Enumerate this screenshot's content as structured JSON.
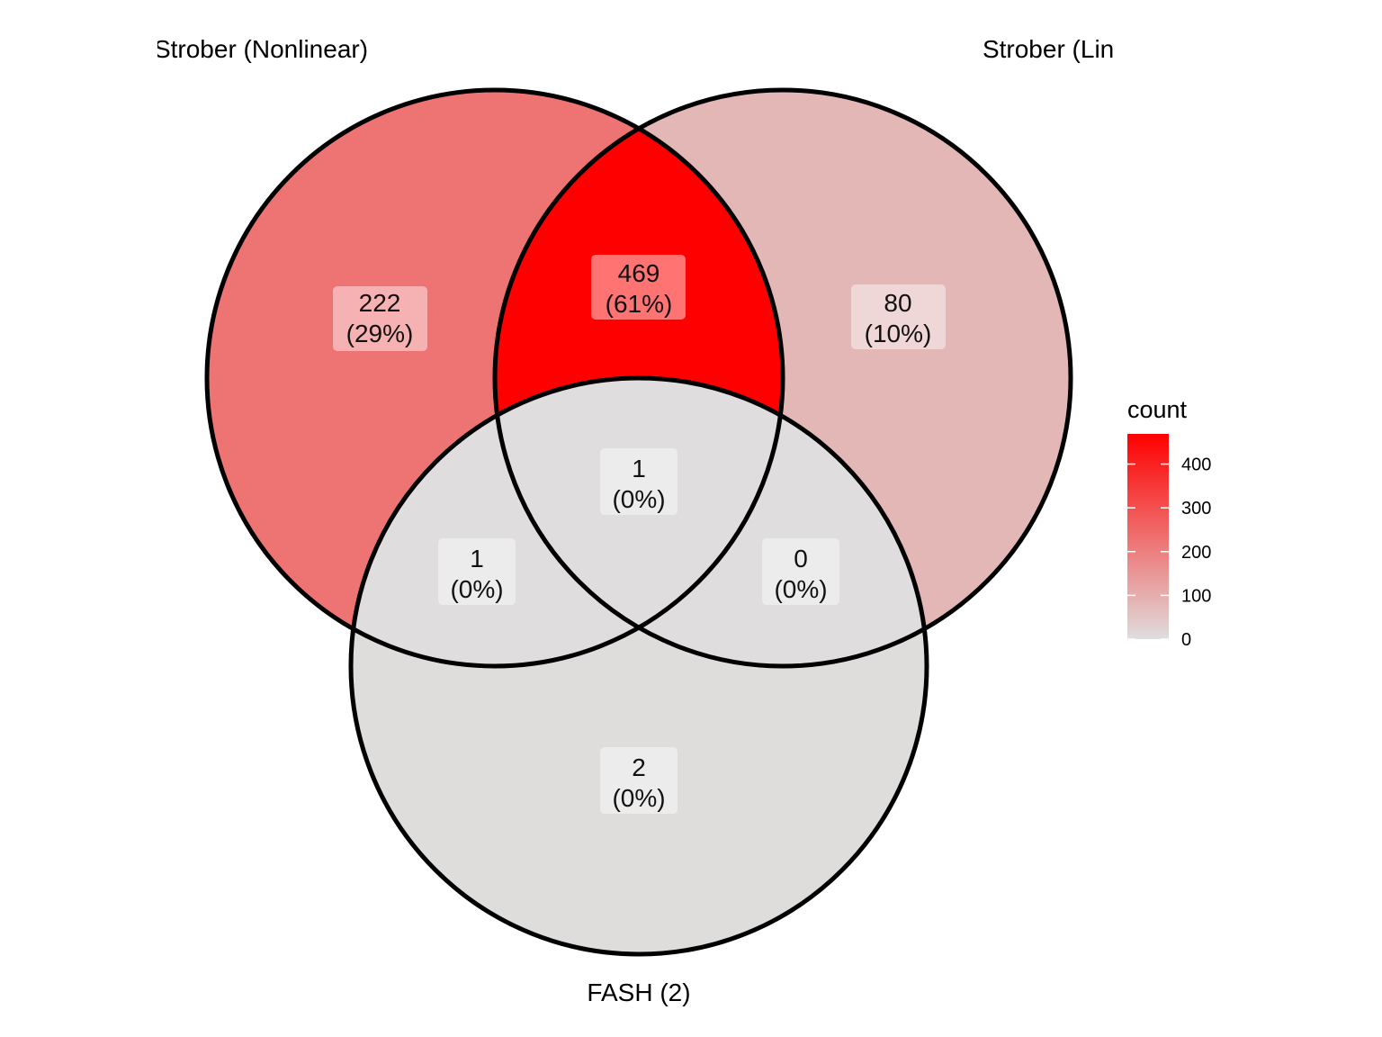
{
  "sets": [
    {
      "id": "A",
      "label": "Strober (Nonlinear)"
    },
    {
      "id": "B",
      "label": "Strober (Linear)"
    },
    {
      "id": "C",
      "label": "FASH (2)"
    }
  ],
  "regions": [
    {
      "id": "A_only",
      "count": "222",
      "percent": "(29%)",
      "value": 222
    },
    {
      "id": "AB",
      "count": "469",
      "percent": "(61%)",
      "value": 469
    },
    {
      "id": "B_only",
      "count": "80",
      "percent": "(10%)",
      "value": 80
    },
    {
      "id": "ABC",
      "count": "1",
      "percent": "(0%)",
      "value": 1
    },
    {
      "id": "AC",
      "count": "1",
      "percent": "(0%)",
      "value": 1
    },
    {
      "id": "BC",
      "count": "0",
      "percent": "(0%)",
      "value": 0
    },
    {
      "id": "C_only",
      "count": "2",
      "percent": "(0%)",
      "value": 2
    }
  ],
  "legend": {
    "title": "count",
    "ticks": [
      "0",
      "100",
      "200",
      "300",
      "400"
    ],
    "tick_values": [
      0,
      100,
      200,
      300,
      400
    ],
    "max": 469,
    "color_low": "#dfdddd",
    "color_high": "#ff0000"
  },
  "colors": {
    "outline": "#000000",
    "label_box": "#ffffff"
  }
}
